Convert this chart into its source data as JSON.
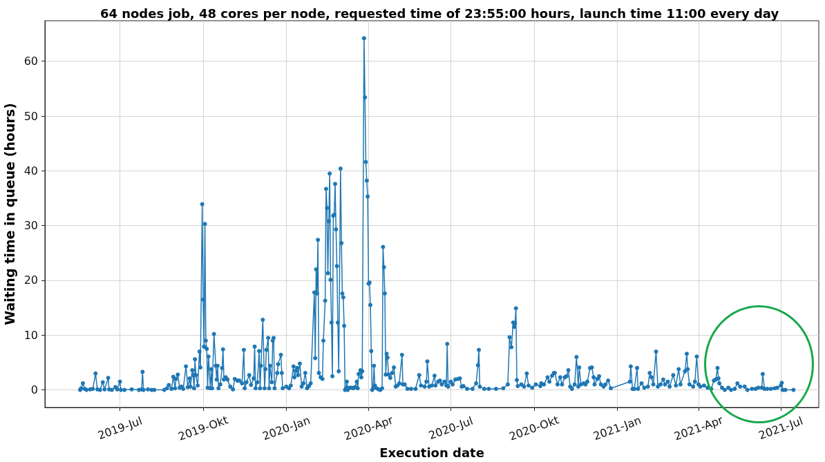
{
  "chart_data": {
    "type": "line",
    "title": "64 nodes job, 48 cores per node, requested time of 23:55:00 hours, launch time 11:00 every day",
    "xlabel": "Execution date",
    "ylabel": "Waiting time in queue (hours)",
    "x": [
      "2019-05-18",
      "2019-05-19",
      "2019-05-21",
      "2019-05-23",
      "2019-05-25",
      "2019-05-29",
      "2019-06-01",
      "2019-06-04",
      "2019-06-06",
      "2019-06-09",
      "2019-06-12",
      "2019-06-14",
      "2019-06-18",
      "2019-06-19",
      "2019-06-22",
      "2019-06-26",
      "2019-06-28",
      "2019-07-01",
      "2019-07-02",
      "2019-07-06",
      "2019-07-14",
      "2019-07-22",
      "2019-07-25",
      "2019-07-26",
      "2019-07-27",
      "2019-08-01",
      "2019-08-05",
      "2019-08-08",
      "2019-08-19",
      "2019-08-22",
      "2019-08-24",
      "2019-08-27",
      "2019-08-29",
      "2019-08-31",
      "2019-09-01",
      "2019-09-03",
      "2019-09-05",
      "2019-09-07",
      "2019-09-09",
      "2019-09-12",
      "2019-09-14",
      "2019-09-16",
      "2019-09-17",
      "2019-09-19",
      "2019-09-20",
      "2019-09-21",
      "2019-09-22",
      "2019-09-23",
      "2019-09-25",
      "2019-09-27",
      "2019-09-28",
      "2019-09-30",
      "2019-10-01",
      "2019-10-02",
      "2019-10-03",
      "2019-10-04",
      "2019-10-05",
      "2019-10-06",
      "2019-10-07",
      "2019-10-09",
      "2019-10-10",
      "2019-10-11",
      "2019-10-13",
      "2019-10-15",
      "2019-10-16",
      "2019-10-17",
      "2019-10-18",
      "2019-10-20",
      "2019-10-22",
      "2019-10-23",
      "2019-10-24",
      "2019-10-26",
      "2019-10-28",
      "2019-10-31",
      "2019-11-03",
      "2019-11-05",
      "2019-11-08",
      "2019-11-10",
      "2019-11-13",
      "2019-11-15",
      "2019-11-16",
      "2019-11-18",
      "2019-11-21",
      "2019-11-23",
      "2019-11-26",
      "2019-11-27",
      "2019-11-28",
      "2019-11-30",
      "2019-12-02",
      "2019-12-03",
      "2019-12-04",
      "2019-12-06",
      "2019-12-08",
      "2019-12-09",
      "2019-12-10",
      "2019-12-12",
      "2019-12-13",
      "2019-12-14",
      "2019-12-16",
      "2019-12-17",
      "2019-12-18",
      "2019-12-19",
      "2019-12-22",
      "2019-12-23",
      "2019-12-26",
      "2019-12-27",
      "2019-12-28",
      "2020-01-01",
      "2020-01-04",
      "2020-01-06",
      "2020-01-09",
      "2020-01-10",
      "2020-01-12",
      "2020-01-13",
      "2020-01-14",
      "2020-01-16",
      "2020-01-18",
      "2020-01-20",
      "2020-01-22",
      "2020-01-24",
      "2020-01-25",
      "2020-01-26",
      "2020-01-28",
      "2020-02-01",
      "2020-02-02",
      "2020-02-03",
      "2020-02-04",
      "2020-02-05",
      "2020-02-06",
      "2020-02-08",
      "2020-02-10",
      "2020-02-11",
      "2020-02-13",
      "2020-02-14",
      "2020-02-15",
      "2020-02-16",
      "2020-02-17",
      "2020-02-18",
      "2020-02-19",
      "2020-02-20",
      "2020-02-21",
      "2020-02-22",
      "2020-02-23",
      "2020-02-24",
      "2020-02-25",
      "2020-02-26",
      "2020-02-27",
      "2020-02-28",
      "2020-03-01",
      "2020-03-02",
      "2020-03-03",
      "2020-03-04",
      "2020-03-05",
      "2020-03-06",
      "2020-03-07",
      "2020-03-08",
      "2020-03-09",
      "2020-03-11",
      "2020-03-13",
      "2020-03-15",
      "2020-03-17",
      "2020-03-19",
      "2020-03-20",
      "2020-03-21",
      "2020-03-23",
      "2020-03-24",
      "2020-03-25",
      "2020-03-27",
      "2020-03-28",
      "2020-03-29",
      "2020-03-30",
      "2020-03-31",
      "2020-04-01",
      "2020-04-02",
      "2020-04-03",
      "2020-04-04",
      "2020-04-05",
      "2020-04-06",
      "2020-04-07",
      "2020-04-08",
      "2020-04-10",
      "2020-04-12",
      "2020-04-14",
      "2020-04-16",
      "2020-04-17",
      "2020-04-18",
      "2020-04-19",
      "2020-04-20",
      "2020-04-21",
      "2020-04-22",
      "2020-04-23",
      "2020-04-25",
      "2020-04-27",
      "2020-04-29",
      "2020-05-01",
      "2020-05-03",
      "2020-05-05",
      "2020-05-08",
      "2020-05-09",
      "2020-05-11",
      "2020-05-14",
      "2020-05-18",
      "2020-05-23",
      "2020-05-27",
      "2020-05-29",
      "2020-06-02",
      "2020-06-04",
      "2020-06-05",
      "2020-06-07",
      "2020-06-10",
      "2020-06-13",
      "2020-06-14",
      "2020-06-17",
      "2020-06-19",
      "2020-06-21",
      "2020-06-24",
      "2020-06-26",
      "2020-06-27",
      "2020-06-28",
      "2020-07-01",
      "2020-07-03",
      "2020-07-06",
      "2020-07-09",
      "2020-07-11",
      "2020-07-13",
      "2020-07-15",
      "2020-07-19",
      "2020-07-25",
      "2020-07-29",
      "2020-07-31",
      "2020-08-01",
      "2020-08-02",
      "2020-08-07",
      "2020-08-12",
      "2020-08-20",
      "2020-08-28",
      "2020-09-02",
      "2020-09-04",
      "2020-09-06",
      "2020-09-08",
      "2020-09-09",
      "2020-09-10",
      "2020-09-11",
      "2020-09-12",
      "2020-09-13",
      "2020-09-17",
      "2020-09-20",
      "2020-09-23",
      "2020-09-25",
      "2020-09-29",
      "2020-10-03",
      "2020-10-08",
      "2020-10-09",
      "2020-10-12",
      "2020-10-16",
      "2020-10-18",
      "2020-10-21",
      "2020-10-23",
      "2020-10-24",
      "2020-10-27",
      "2020-10-30",
      "2020-11-01",
      "2020-11-04",
      "2020-11-06",
      "2020-11-08",
      "2020-11-10",
      "2020-11-12",
      "2020-11-15",
      "2020-11-17",
      "2020-11-19",
      "2020-11-20",
      "2020-11-22",
      "2020-11-25",
      "2020-11-27",
      "2020-11-29",
      "2020-12-02",
      "2020-12-04",
      "2020-12-06",
      "2020-12-07",
      "2020-12-10",
      "2020-12-12",
      "2020-12-14",
      "2020-12-17",
      "2020-12-19",
      "2020-12-22",
      "2020-12-25",
      "2021-01-15",
      "2021-01-16",
      "2021-01-18",
      "2021-01-20",
      "2021-01-23",
      "2021-01-24",
      "2021-01-28",
      "2021-01-31",
      "2021-02-04",
      "2021-02-06",
      "2021-02-08",
      "2021-02-10",
      "2021-02-13",
      "2021-02-15",
      "2021-02-18",
      "2021-02-21",
      "2021-02-23",
      "2021-02-26",
      "2021-02-28",
      "2021-03-04",
      "2021-03-07",
      "2021-03-10",
      "2021-03-12",
      "2021-03-17",
      "2021-03-19",
      "2021-03-20",
      "2021-03-22",
      "2021-03-26",
      "2021-03-28",
      "2021-03-30",
      "2021-04-01",
      "2021-04-03",
      "2021-04-07",
      "2021-04-11",
      "2021-04-15",
      "2021-04-18",
      "2021-04-20",
      "2021-04-22",
      "2021-04-23",
      "2021-04-24",
      "2021-04-27",
      "2021-04-30",
      "2021-05-04",
      "2021-05-07",
      "2021-05-11",
      "2021-05-14",
      "2021-05-17",
      "2021-05-22",
      "2021-05-25",
      "2021-05-30",
      "2021-06-03",
      "2021-06-06",
      "2021-06-10",
      "2021-06-11",
      "2021-06-13",
      "2021-06-16",
      "2021-06-20",
      "2021-06-24",
      "2021-06-27",
      "2021-07-01",
      "2021-07-02",
      "2021-07-03",
      "2021-07-06",
      "2021-07-15"
    ],
    "values": [
      0,
      0.3,
      1.2,
      0.2,
      0,
      0.1,
      0.2,
      3.0,
      0.1,
      0,
      1.4,
      0.1,
      2.2,
      0.1,
      0,
      0.5,
      0.1,
      1.5,
      0,
      0,
      0.1,
      0,
      0.1,
      3.3,
      0,
      0.1,
      0,
      0,
      0,
      0.3,
      0.9,
      0.2,
      2.4,
      0.3,
      2.0,
      2.8,
      0.4,
      0.6,
      0.2,
      4.3,
      0.5,
      2.1,
      0.6,
      3.6,
      2.7,
      0.3,
      5.6,
      2.7,
      0.8,
      7.0,
      4.1,
      33.9,
      16.5,
      7.9,
      30.3,
      9.0,
      7.5,
      0.4,
      6.1,
      0.3,
      3.8,
      0.3,
      10.2,
      4.4,
      1.9,
      4.4,
      0.3,
      1.0,
      4.0,
      7.4,
      1.9,
      2.3,
      1.9,
      0.6,
      0.1,
      2.0,
      1.7,
      1.7,
      1.2,
      7.3,
      0.3,
      1.4,
      2.7,
      0.9,
      2.1,
      7.9,
      0.3,
      1.4,
      7.1,
      0.3,
      4.4,
      12.8,
      0.3,
      3.8,
      7.3,
      9.5,
      0.3,
      4.4,
      1.4,
      9.0,
      9.5,
      0.3,
      3.1,
      4.7,
      6.4,
      3.1,
      0.3,
      0.6,
      0.3,
      0.8,
      4.3,
      2.3,
      3.5,
      4.0,
      2.7,
      4.8,
      0.6,
      1.2,
      3.1,
      0.3,
      0.6,
      0.7,
      1.2,
      17.8,
      5.8,
      22.0,
      17.6,
      27.4,
      3.1,
      2.3,
      2.0,
      9.0,
      16.3,
      36.7,
      33.2,
      21.3,
      30.8,
      39.5,
      20.1,
      12.3,
      2.5,
      31.8,
      32.0,
      37.6,
      29.3,
      22.6,
      12.3,
      3.4,
      40.4,
      26.8,
      17.6,
      16.9,
      11.7,
      0,
      0.3,
      1.5,
      0,
      0.4,
      0.4,
      0.3,
      0.5,
      1.5,
      0.3,
      2.9,
      3.6,
      2.3,
      3.4,
      64.2,
      53.4,
      41.6,
      38.2,
      35.3,
      19.4,
      19.6,
      15.5,
      7.1,
      0,
      0.3,
      4.4,
      0.8,
      0.3,
      0.1,
      0,
      0.3,
      26.1,
      22.4,
      17.6,
      2.8,
      6.6,
      5.9,
      2.8,
      2.2,
      3.1,
      4.1,
      0.6,
      0.8,
      1.2,
      6.4,
      1.0,
      1.0,
      0.2,
      0.2,
      0.2,
      2.7,
      0.8,
      0.6,
      1.5,
      5.2,
      0.6,
      0.8,
      2.6,
      0.8,
      1.5,
      1.7,
      1.0,
      1.5,
      0.8,
      8.4,
      0.6,
      1.5,
      1.0,
      1.9,
      2.0,
      2.1,
      0.6,
      0.7,
      0.2,
      0.2,
      1.2,
      4.5,
      7.3,
      0.6,
      0.2,
      0.2,
      0.2,
      0.3,
      1.0,
      9.6,
      7.8,
      12.3,
      11.5,
      12.2,
      14.9,
      1.8,
      0.7,
      1.0,
      0.6,
      3.0,
      0.8,
      0.4,
      1.0,
      0.7,
      1.2,
      1.0,
      2.3,
      1.5,
      2.6,
      3.1,
      3.1,
      1.0,
      2.3,
      1.0,
      2.3,
      2.5,
      3.6,
      0.6,
      0.2,
      1.0,
      6.0,
      0.6,
      4.1,
      1.0,
      1.2,
      1.0,
      1.5,
      4.0,
      4.1,
      2.3,
      1.0,
      2.0,
      2.5,
      1.0,
      0.6,
      1.0,
      1.7,
      0.3,
      1.5,
      4.3,
      0.2,
      0.2,
      4.0,
      0.2,
      1.2,
      0.4,
      0.6,
      3.1,
      2.3,
      1.0,
      7.0,
      0.6,
      1.0,
      1.9,
      1.0,
      1.5,
      0.6,
      2.7,
      0.8,
      3.8,
      1.0,
      3.4,
      6.6,
      3.8,
      1.0,
      0.6,
      1.5,
      6.1,
      1.0,
      0.6,
      0.8,
      0.4,
      0.2,
      1.7,
      1.9,
      4.0,
      2.1,
      1.2,
      0.4,
      0,
      0.4,
      0,
      0.2,
      1.2,
      0.6,
      0.6,
      0,
      0.2,
      0.2,
      0.4,
      0.4,
      2.9,
      0.2,
      0.2,
      0.2,
      0.3,
      0.4,
      0.8,
      1.3,
      0,
      0,
      0
    ],
    "color": "#1f77b4",
    "marker": "circle",
    "line_style": "solid",
    "xlim": [
      "2019-04-09",
      "2021-08-12"
    ],
    "ylim": [
      -3.2,
      67.4
    ],
    "xticks": [
      {
        "value": "2019-07-01",
        "label": "2019-Jul"
      },
      {
        "value": "2019-10-01",
        "label": "2019-Okt"
      },
      {
        "value": "2020-01-01",
        "label": "2020-Jan"
      },
      {
        "value": "2020-04-01",
        "label": "2020-Apr"
      },
      {
        "value": "2020-07-01",
        "label": "2020-Jul"
      },
      {
        "value": "2020-10-01",
        "label": "2020-Okt"
      },
      {
        "value": "2021-01-01",
        "label": "2021-Jan"
      },
      {
        "value": "2021-04-01",
        "label": "2021-Apr"
      },
      {
        "value": "2021-07-01",
        "label": "2021-Jul"
      }
    ],
    "yticks": [
      0,
      10,
      20,
      30,
      40,
      50,
      60
    ],
    "grid": true
  }
}
